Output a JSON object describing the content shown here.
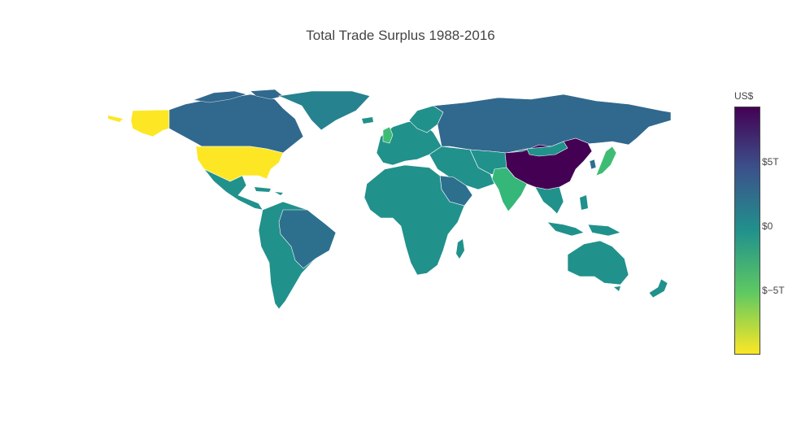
{
  "title": "Total Trade Surplus 1988-2016",
  "colorbar": {
    "title": "US$",
    "ticks": [
      "$5T",
      "$0",
      "$−5T"
    ],
    "colors": {
      "top": "#440154",
      "upper": "#3b528b",
      "middle": "#21918c",
      "lower": "#5ec962",
      "bottom": "#fde725"
    }
  },
  "regions": [
    {
      "name": "China",
      "color": "#440154"
    },
    {
      "name": "United States",
      "color": "#fde725"
    },
    {
      "name": "Alaska",
      "color": "#fde725"
    },
    {
      "name": "Canada",
      "color": "#31688e"
    },
    {
      "name": "Russia",
      "color": "#31688e"
    },
    {
      "name": "Greenland",
      "color": "#26828e"
    },
    {
      "name": "Brazil",
      "color": "#2d708e"
    },
    {
      "name": "India",
      "color": "#35b779"
    },
    {
      "name": "Japan",
      "color": "#3fbc73"
    },
    {
      "name": "United Kingdom",
      "color": "#3fbc73"
    },
    {
      "name": "Saudi Arabia",
      "color": "#2d708e"
    },
    {
      "name": "Australia",
      "color": "#21918c"
    },
    {
      "name": "Africa",
      "color": "#21918c"
    },
    {
      "name": "South America",
      "color": "#21918c"
    }
  ]
}
